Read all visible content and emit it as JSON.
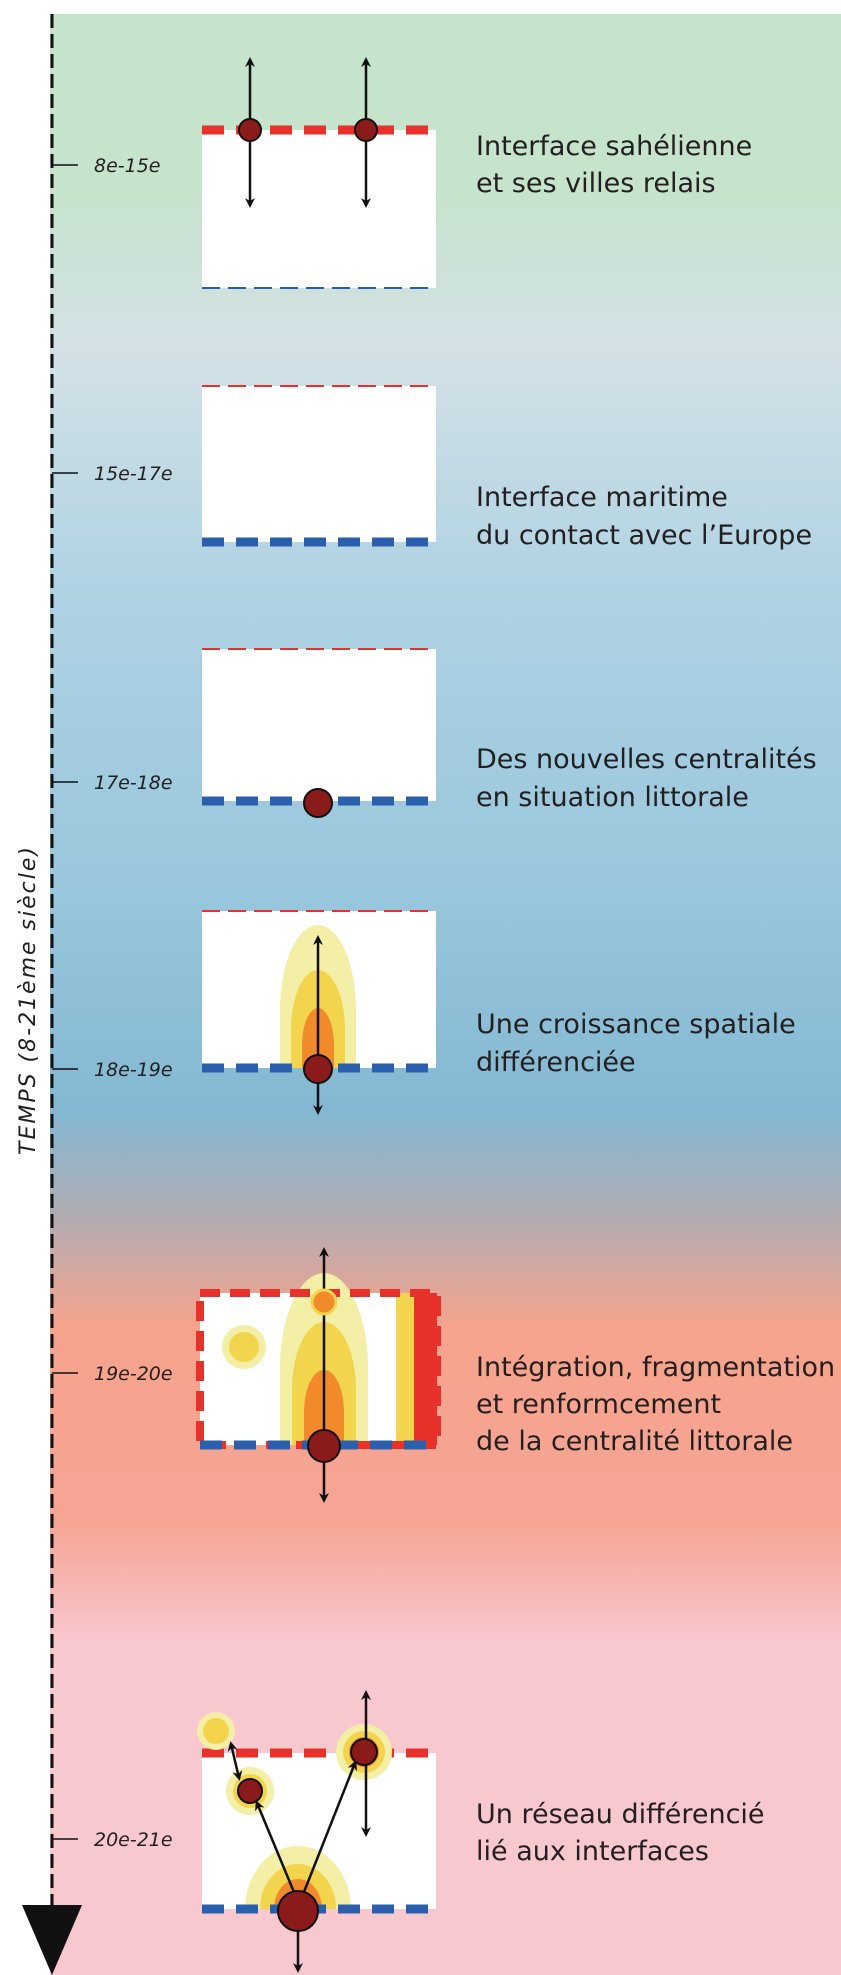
{
  "axis": {
    "title": "TEMPS (8-21ème siècle)"
  },
  "stages": [
    {
      "period": "8e-15e",
      "label_line1": "Interface sahélienne",
      "label_line2": "et ses villes relais",
      "label_line3": ""
    },
    {
      "period": "15e-17e",
      "label_line1": "Interface maritime",
      "label_line2": "du contact avec l’Europe",
      "label_line3": ""
    },
    {
      "period": "17e-18e",
      "label_line1": "Des nouvelles centralités",
      "label_line2": "en situation littorale",
      "label_line3": ""
    },
    {
      "period": "18e-19e",
      "label_line1": "Une croissance spatiale",
      "label_line2": "différenciée",
      "label_line3": ""
    },
    {
      "period": "19e-20e",
      "label_line1": "Intégration, fragmentation",
      "label_line2": "et renformcement",
      "label_line3": "de la centralité littorale"
    },
    {
      "period": "20e-21e",
      "label_line1": "Un réseau différencié",
      "label_line2": "lié aux interfaces",
      "label_line3": ""
    }
  ],
  "colors": {
    "sahel_interface": "#e8312a",
    "maritime_interface": "#2a5fad",
    "city": "#8b1a1a",
    "growth_light": "#f3efa6",
    "growth_yellow": "#f2d44d",
    "growth_orange": "#f08a2a",
    "growth_red": "#e8312a",
    "band_green": "#c6e3cc",
    "band_blue": "#8ebed6",
    "band_salmon": "#f6a38c",
    "band_pink": "#f8c8cf"
  }
}
